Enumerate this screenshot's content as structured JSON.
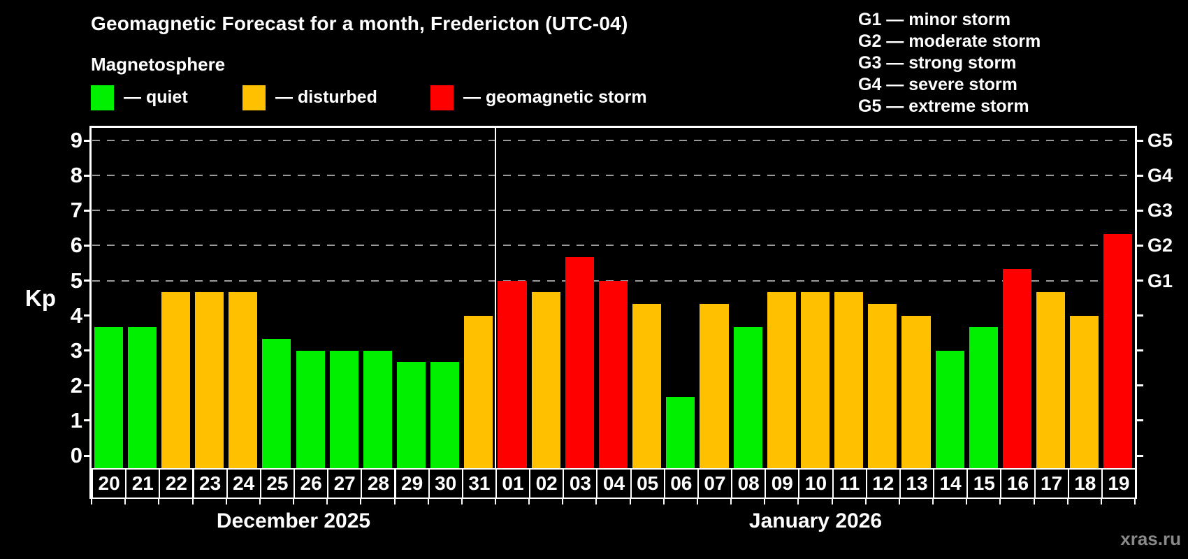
{
  "header": {
    "title": "Geomagnetic Forecast for a month, Fredericton (UTC-04)",
    "subtitle": "Magnetosphere"
  },
  "magnetosphere_legend": {
    "items": [
      {
        "name": "quiet",
        "label": "— quiet"
      },
      {
        "name": "disturbed",
        "label": "— disturbed"
      },
      {
        "name": "storm",
        "label": "— geomagnetic storm"
      }
    ]
  },
  "g_legend": {
    "lines": [
      "G1 — minor storm",
      "G2 — moderate storm",
      "G3 — strong storm",
      "G4 — severe storm",
      "G5 — extreme storm"
    ]
  },
  "chart_data": {
    "type": "bar",
    "title": "Geomagnetic Forecast for a month, Fredericton (UTC-04)",
    "ylabel": "Kp",
    "ylim": [
      0,
      9
    ],
    "yticks": [
      0,
      1,
      2,
      3,
      4,
      5,
      6,
      7,
      8,
      9
    ],
    "grid": "dashed horizontal gridlines at Kp 5,6,7,8,9 only",
    "legend_position": "top-left",
    "right_axis": {
      "labels": [
        "G1",
        "G2",
        "G3",
        "G4",
        "G5"
      ],
      "kp_levels": [
        5,
        6,
        7,
        8,
        9
      ]
    },
    "months": [
      {
        "label": "December 2025",
        "start_index": 0,
        "days": 12
      },
      {
        "label": "January 2026",
        "start_index": 12,
        "days": 19
      }
    ],
    "categories": [
      "20",
      "21",
      "22",
      "23",
      "24",
      "25",
      "26",
      "27",
      "28",
      "29",
      "30",
      "31",
      "01",
      "02",
      "03",
      "04",
      "05",
      "06",
      "07",
      "08",
      "09",
      "10",
      "11",
      "12",
      "13",
      "14",
      "15",
      "16",
      "17",
      "18",
      "19"
    ],
    "values": [
      3.67,
      3.67,
      4.67,
      4.67,
      4.67,
      3.33,
      3,
      3,
      3,
      2.67,
      2.67,
      4,
      5,
      4.67,
      5.67,
      5,
      4.33,
      1.67,
      4.33,
      3.67,
      4.67,
      4.67,
      4.67,
      4.33,
      4,
      3,
      3.67,
      5.33,
      4.67,
      4,
      6.33
    ],
    "statuses": [
      "quiet",
      "quiet",
      "disturbed",
      "disturbed",
      "disturbed",
      "quiet",
      "quiet",
      "quiet",
      "quiet",
      "quiet",
      "quiet",
      "disturbed",
      "storm",
      "disturbed",
      "storm",
      "storm",
      "disturbed",
      "quiet",
      "disturbed",
      "quiet",
      "disturbed",
      "disturbed",
      "disturbed",
      "disturbed",
      "disturbed",
      "quiet",
      "quiet",
      "storm",
      "disturbed",
      "disturbed",
      "storm"
    ]
  },
  "watermark": "xras.ru",
  "colors": {
    "quiet": "#00f000",
    "disturbed": "#ffc000",
    "storm": "#ff0000",
    "grid": "#9a9a9a",
    "axis": "#ffffff",
    "background": "#000000",
    "watermark": "#8a8a8a"
  }
}
